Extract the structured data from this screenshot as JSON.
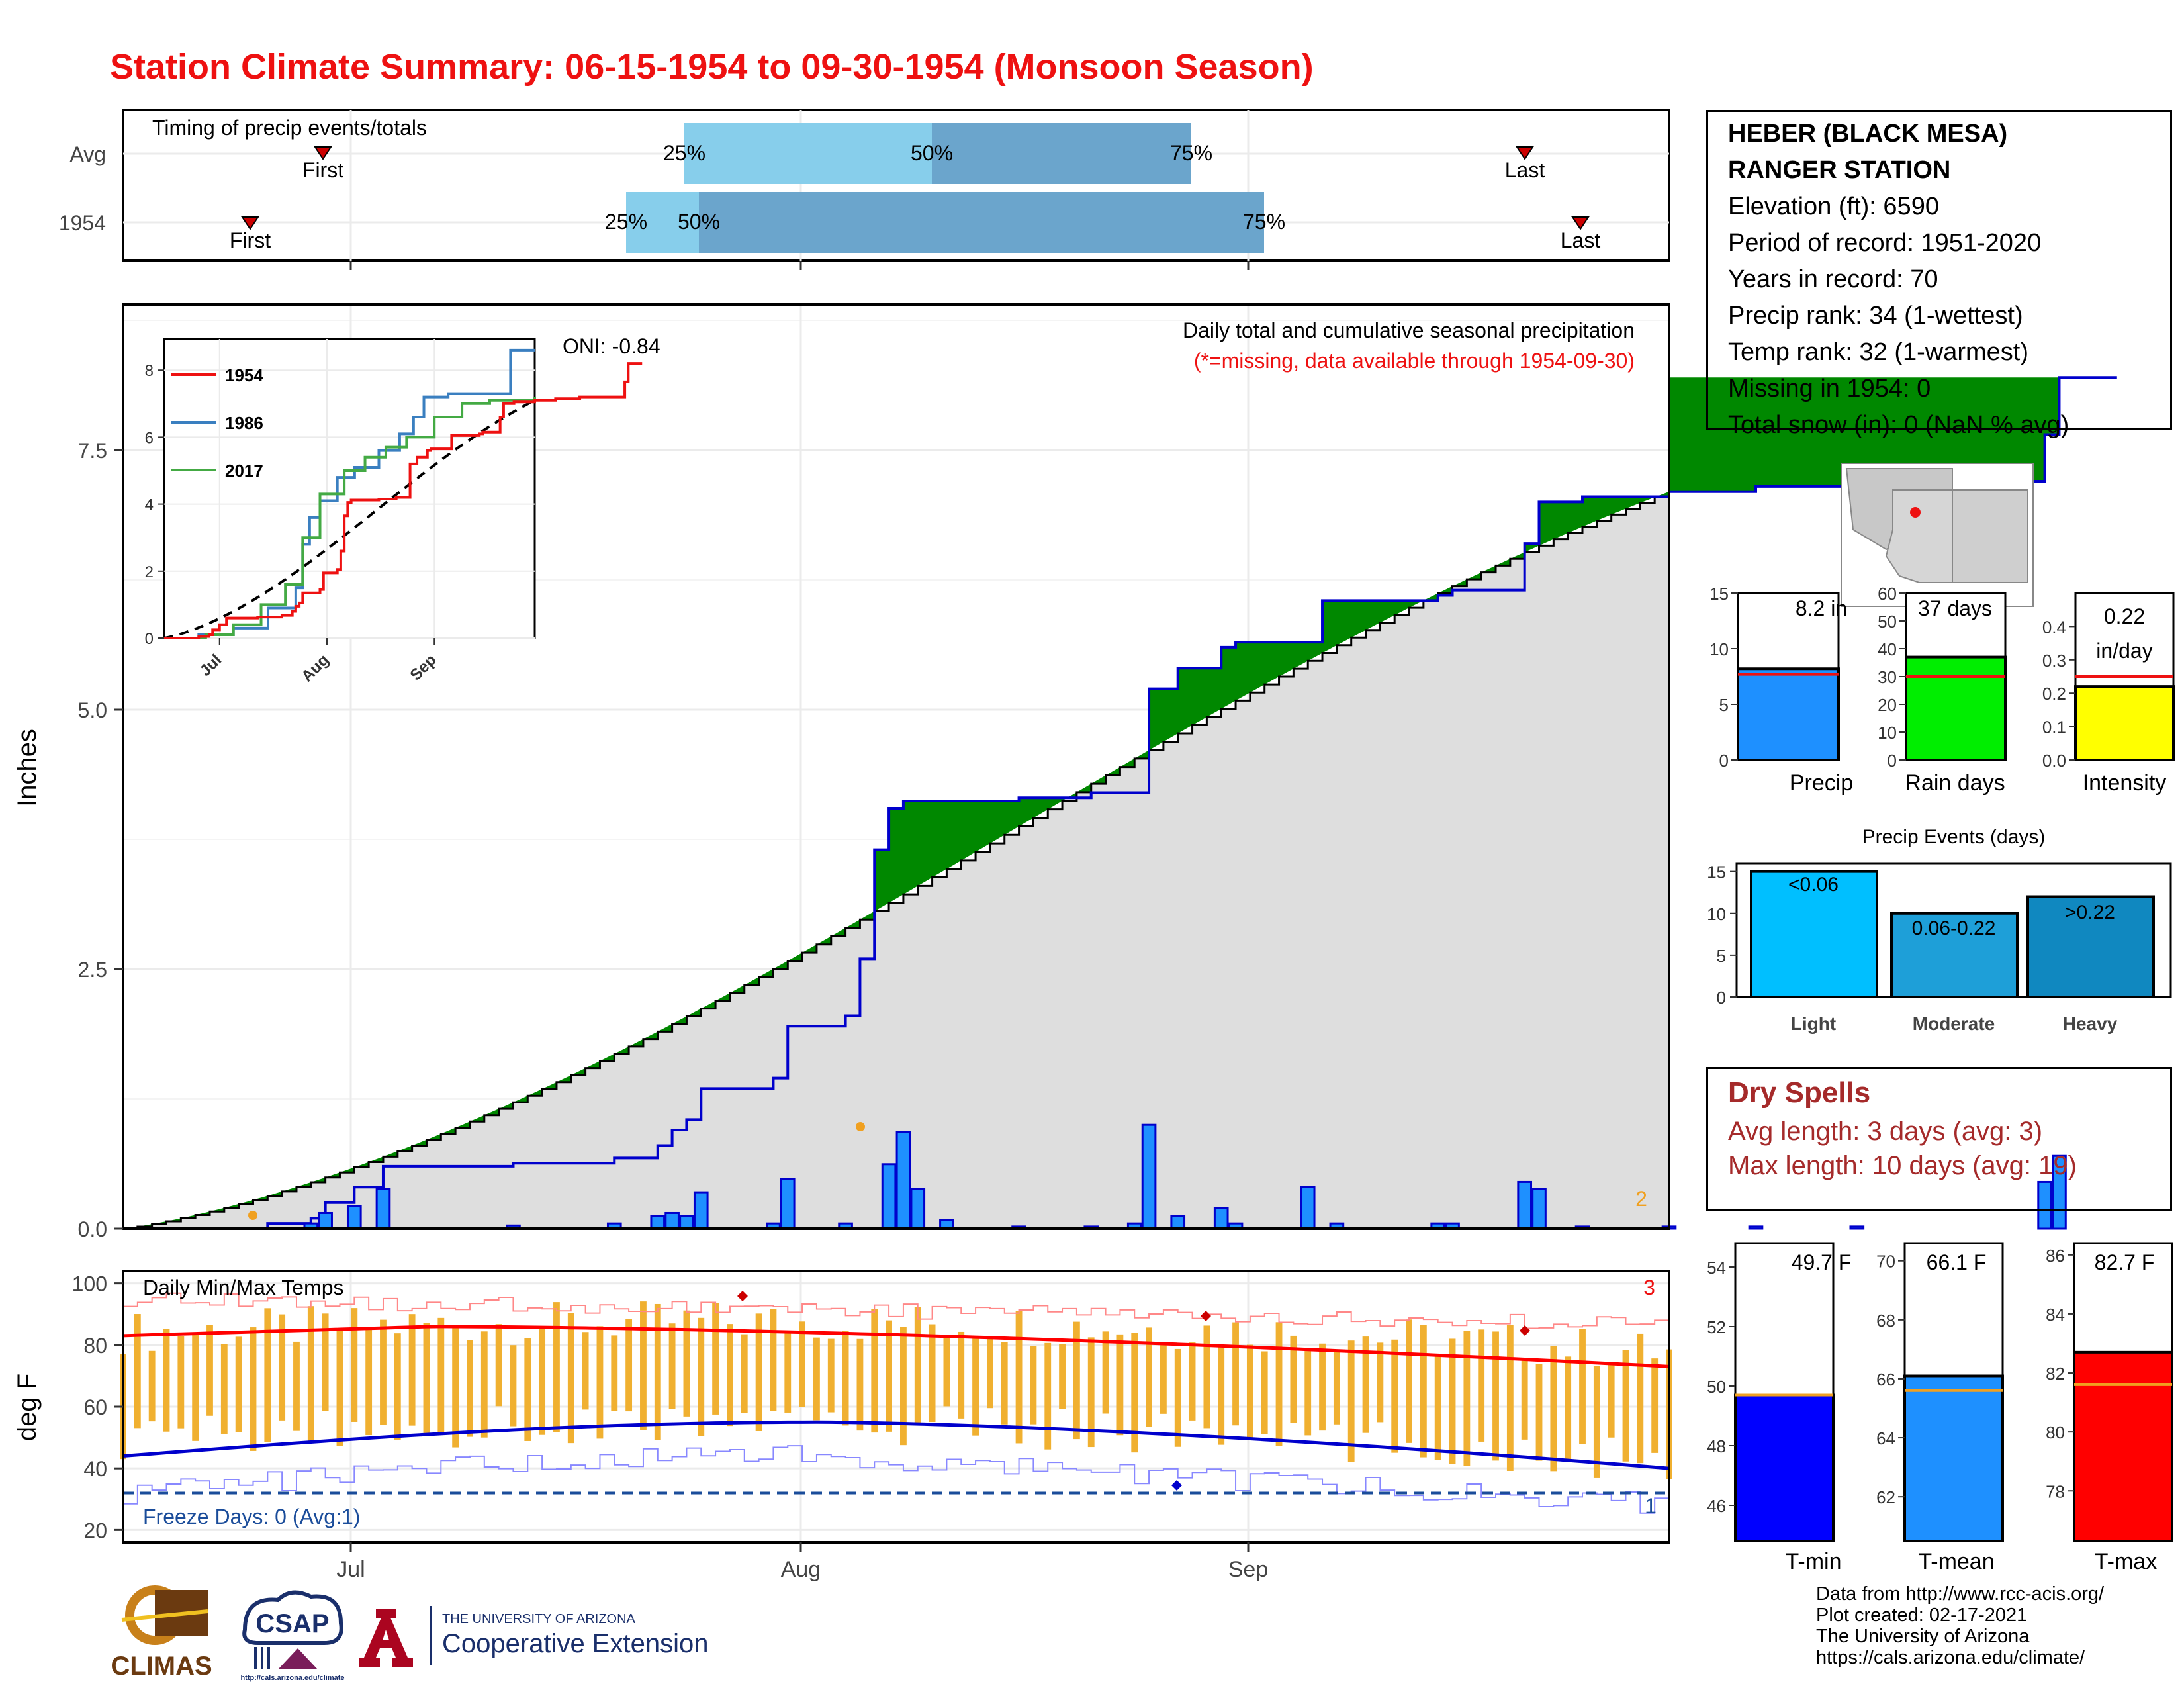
{
  "title": "Station Climate Summary: 06-15-1954 to 09-30-1954 (Monsoon Season)",
  "colors": {
    "title": "#ee1111",
    "precip_bar": "#1e90ff",
    "cum_green": "#008800",
    "avg_gray": "#dedede",
    "timing_light": "#87ceeb",
    "timing_dark": "#6ba5cc",
    "tmax": "#ff0000",
    "tmin": "#0000cc",
    "temp_bar": "#f0b030",
    "dry_spell": "#a52a2a"
  },
  "timing_panel": {
    "title": "Timing of precip events/totals",
    "rows": [
      {
        "label": "Avg",
        "first_label": "First",
        "last_label": "Last",
        "q25": "25%",
        "q50": "50%",
        "q75": "75%"
      },
      {
        "label": "1954",
        "first_label": "First",
        "last_label": "Last",
        "q25": "25%",
        "q50": "50%",
        "q75": "75%"
      }
    ]
  },
  "main_panel": {
    "ylabel": "Inches",
    "yticks": [
      "0.0",
      "2.5",
      "5.0",
      "7.5"
    ],
    "legend_line1": "Daily total and cumulative seasonal precipitation",
    "legend_line2": "(*=missing, data available through 1954-09-30)",
    "oni": "ONI: -0.84",
    "count_label": "2",
    "xticks": [
      "Jul",
      "Aug",
      "Sep"
    ]
  },
  "inset": {
    "series": [
      "1954",
      "1986",
      "2017"
    ],
    "yticks": [
      "0",
      "2",
      "4",
      "6",
      "8"
    ],
    "xticks": [
      "Jul",
      "Aug",
      "Sep"
    ]
  },
  "temp_panel": {
    "title": "Daily Min/Max Temps",
    "ylabel": "deg F",
    "yticks": [
      "20",
      "40",
      "60",
      "80",
      "100"
    ],
    "freeze_label": "Freeze Days: 0 (Avg:1)",
    "count_top": "3",
    "count_bottom": "1"
  },
  "station_box": {
    "name_line1": "HEBER (BLACK MESA)",
    "name_line2": "RANGER STATION",
    "elevation": "Elevation (ft): 6590",
    "period": "Period of record: 1951-2020",
    "years": "Years in record: 70",
    "precip_rank": "Precip rank: 34 (1-wettest)",
    "temp_rank": "Temp rank: 32 (1-warmest)",
    "missing": "Missing in 1954: 0",
    "snow": "Total snow (in): 0 (NaN % avg)"
  },
  "summary_bars": [
    {
      "label": "Precip",
      "value_text": "8.2 in",
      "yticks": [
        "0",
        "5",
        "10",
        "15"
      ]
    },
    {
      "label": "Rain days",
      "value_text": "37 days",
      "yticks": [
        "0",
        "10",
        "20",
        "30",
        "40",
        "50",
        "60"
      ]
    },
    {
      "label": "Intensity",
      "value_text_line1": "0.22",
      "value_text_line2": "in/day",
      "yticks": [
        "0.0",
        "0.1",
        "0.2",
        "0.3",
        "0.4"
      ]
    }
  ],
  "events_panel": {
    "title": "Precip Events (days)",
    "yticks": [
      "0",
      "5",
      "10",
      "15"
    ],
    "bars": [
      {
        "label": "Light",
        "inner": "<0.06"
      },
      {
        "label": "Moderate",
        "inner": "0.06-0.22"
      },
      {
        "label": "Heavy",
        "inner": ">0.22"
      }
    ]
  },
  "dry_spells": {
    "title": "Dry Spells",
    "avg": "Avg length: 3 days (avg: 3)",
    "max": "Max length: 10 days (avg: 19)"
  },
  "temp_bars": [
    {
      "label": "T-min",
      "value_text": "49.7 F",
      "yticks": [
        "46",
        "48",
        "50",
        "52",
        "54"
      ]
    },
    {
      "label": "T-mean",
      "value_text": "66.1 F",
      "yticks": [
        "62",
        "64",
        "66",
        "68",
        "70"
      ]
    },
    {
      "label": "T-max",
      "value_text": "82.7 F",
      "yticks": [
        "78",
        "80",
        "82",
        "84",
        "86"
      ]
    }
  ],
  "footer": {
    "line1": "Data from http://www.rcc-acis.org/",
    "line2": "Plot created: 02-17-2021",
    "line3": "The University of Arizona",
    "line4": "https://cals.arizona.edu/climate/",
    "climas": "CLIMAS",
    "csap": "CSAP",
    "csap_url": "http://cals.arizona.edu/climate",
    "ua_small": "THE UNIVERSITY OF ARIZONA",
    "ua_big": "Cooperative Extension"
  },
  "chart_data": {
    "type": "area",
    "title": "Station Climate Summary: 06-15-1954 to 09-30-1954 (Monsoon Season)",
    "ylabel": "Inches",
    "ylim": [
      0,
      9
    ],
    "x_range": [
      "1954-06-15",
      "1954-09-30"
    ],
    "daily_precip": [
      [
        "06-28",
        0.05
      ],
      [
        "06-29",
        0.15
      ],
      [
        "07-01",
        0.22
      ],
      [
        "07-03",
        0.38
      ],
      [
        "07-12",
        0.03
      ],
      [
        "07-19",
        0.05
      ],
      [
        "07-22",
        0.12
      ],
      [
        "07-23",
        0.15
      ],
      [
        "07-24",
        0.12
      ],
      [
        "07-25",
        0.35
      ],
      [
        "07-30",
        0.05
      ],
      [
        "07-31",
        0.48
      ],
      [
        "08-04",
        0.05
      ],
      [
        "08-07",
        0.62
      ],
      [
        "08-08",
        0.93
      ],
      [
        "08-09",
        0.38
      ],
      [
        "08-11",
        0.08
      ],
      [
        "08-16",
        0.02
      ],
      [
        "08-21",
        0.02
      ],
      [
        "08-24",
        0.05
      ],
      [
        "08-25",
        1.0
      ],
      [
        "08-27",
        0.12
      ],
      [
        "08-30",
        0.2
      ],
      [
        "08-31",
        0.05
      ],
      [
        "09-05",
        0.4
      ],
      [
        "09-07",
        0.05
      ],
      [
        "09-14",
        0.05
      ],
      [
        "09-15",
        0.05
      ],
      [
        "09-20",
        0.45
      ],
      [
        "09-21",
        0.38
      ],
      [
        "09-24",
        0.02
      ],
      [
        "09-30",
        0.02
      ],
      [
        "10-06",
        0.02
      ],
      [
        "10-13",
        0.02
      ],
      [
        "10-26",
        0.45
      ],
      [
        "10-27",
        0.7
      ]
    ],
    "cumulative_1954": [
      [
        "06-15",
        0
      ],
      [
        "06-25",
        0.05
      ],
      [
        "06-28",
        0.1
      ],
      [
        "06-29",
        0.25
      ],
      [
        "07-01",
        0.4
      ],
      [
        "07-03",
        0.6
      ],
      [
        "07-12",
        0.63
      ],
      [
        "07-19",
        0.68
      ],
      [
        "07-22",
        0.8
      ],
      [
        "07-23",
        0.95
      ],
      [
        "07-24",
        1.05
      ],
      [
        "07-25",
        1.35
      ],
      [
        "07-30",
        1.45
      ],
      [
        "07-31",
        1.95
      ],
      [
        "08-04",
        2.05
      ],
      [
        "08-05",
        2.6
      ],
      [
        "08-06",
        3.65
      ],
      [
        "08-07",
        4.05
      ],
      [
        "08-08",
        4.12
      ],
      [
        "08-16",
        4.15
      ],
      [
        "08-21",
        4.2
      ],
      [
        "08-25",
        5.2
      ],
      [
        "08-27",
        5.4
      ],
      [
        "08-30",
        5.6
      ],
      [
        "08-31",
        5.65
      ],
      [
        "09-05",
        5.65
      ],
      [
        "09-06",
        6.05
      ],
      [
        "09-14",
        6.1
      ],
      [
        "09-15",
        6.15
      ],
      [
        "09-20",
        6.6
      ],
      [
        "09-21",
        7.0
      ],
      [
        "09-24",
        7.05
      ],
      [
        "09-30",
        7.1
      ],
      [
        "10-06",
        7.15
      ],
      [
        "10-13",
        7.2
      ],
      [
        "10-26",
        7.65
      ],
      [
        "10-27",
        8.2
      ],
      [
        "10-31",
        8.2
      ]
    ],
    "avg_cumulative_endpoint": 7.15,
    "inset_series": [
      "1954",
      "1986",
      "2017"
    ],
    "temps": {
      "ylabel": "deg F",
      "ylim": [
        20,
        100
      ],
      "avg_tmax_start": 83,
      "avg_tmax_mid": 86,
      "avg_tmax_end": 73,
      "avg_tmin_start": 44,
      "avg_tmin_mid": 55,
      "avg_tmin_end": 40,
      "freeze_line": 32
    },
    "summary": {
      "precip_in": 8.2,
      "precip_avg": 7.7,
      "rain_days": 37,
      "rain_days_avg": 30,
      "intensity": 0.22,
      "intensity_avg": 0.25,
      "events": {
        "Light": 15,
        "Moderate": 10,
        "Heavy": 12
      },
      "tmin": 49.7,
      "tmin_avg": 49.7,
      "tmean": 66.1,
      "tmean_avg": 65.6,
      "tmax": 82.7,
      "tmax_avg": 81.6
    }
  }
}
